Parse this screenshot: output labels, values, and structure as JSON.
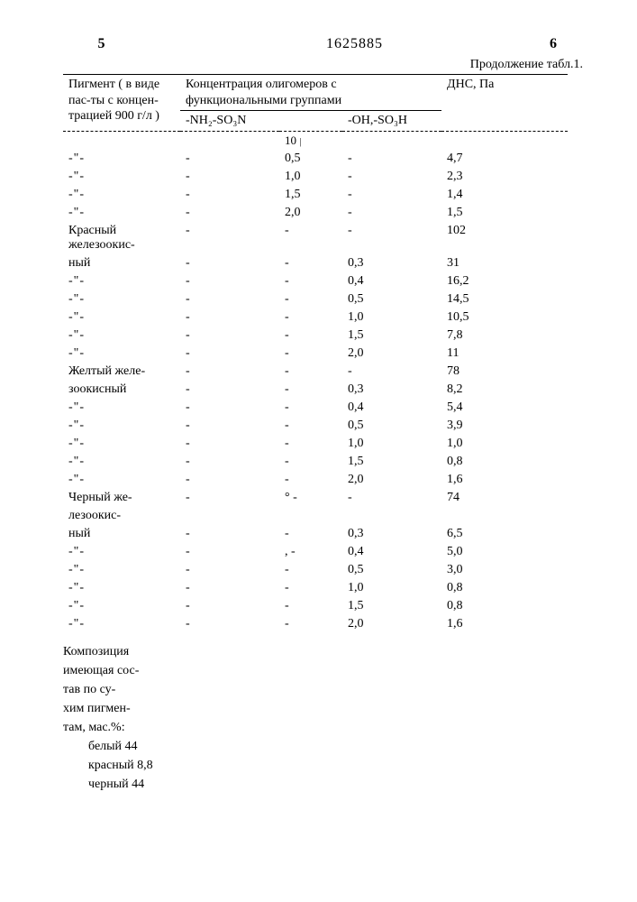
{
  "page_left_num": "5",
  "page_right_num": "6",
  "doc_number": "1625885",
  "continuation": "Продолжение табл.1.",
  "header": {
    "col1": "Пигмент ( в виде пас-ты с концен-трацией 900 г/л )",
    "col_group": "Концентрация олигомеров с функциональными группами",
    "sub_a": "-NH₂-SO₃N",
    "sub_b": "-OH,-SO₃H",
    "col_last": "ДНС, Па"
  },
  "mid_label": "10",
  "rows": [
    {
      "p": "-\"-",
      "a": "-",
      "b": "0,5",
      "c": "-",
      "d": "4,7"
    },
    {
      "p": "-\"-",
      "a": "-",
      "b": "1,0",
      "c": "-",
      "d": "2,3"
    },
    {
      "p": "-\"-",
      "a": "-",
      "b": "1,5",
      "c": "-",
      "d": "1,4"
    },
    {
      "p": "-\"-",
      "a": "-",
      "b": "2,0",
      "c": "-",
      "d": "1,5"
    },
    {
      "p": "Красный железоокис-",
      "a": "-",
      "b": "-",
      "c": "-",
      "d": "102"
    },
    {
      "p": "ный",
      "a": "-",
      "b": "-",
      "c": "0,3",
      "d": "31"
    },
    {
      "p": "-\"-",
      "a": "-",
      "b": "-",
      "c": "0,4",
      "d": "16,2"
    },
    {
      "p": "-\"-",
      "a": "-",
      "b": "-",
      "c": "0,5",
      "d": "14,5"
    },
    {
      "p": "-\"-",
      "a": "-",
      "b": "-",
      "c": "1,0",
      "d": "10,5"
    },
    {
      "p": "-\"-",
      "a": "-",
      "b": "-",
      "c": "1,5",
      "d": "7,8"
    },
    {
      "p": "-\"-",
      "a": "-",
      "b": "-",
      "c": "2,0",
      "d": "11"
    },
    {
      "p": "Желтый желе-",
      "a": "-",
      "b": "-",
      "c": "-",
      "d": "78"
    },
    {
      "p": "зоокисный",
      "a": "-",
      "b": "-",
      "c": "0,3",
      "d": "8,2"
    },
    {
      "p": "-\"-",
      "a": "-",
      "b": "-",
      "c": "0,4",
      "d": "5,4"
    },
    {
      "p": "-\"-",
      "a": "-",
      "b": "-",
      "c": "0,5",
      "d": "3,9"
    },
    {
      "p": "-\"-",
      "a": "-",
      "b": "-",
      "c": "1,0",
      "d": "1,0"
    },
    {
      "p": "-\"-",
      "a": "-",
      "b": "-",
      "c": "1,5",
      "d": "0,8"
    },
    {
      "p": "-\"-",
      "a": "-",
      "b": "-",
      "c": "2,0",
      "d": "1,6"
    },
    {
      "p": "Черный же-",
      "a": "-",
      "b": "°  -",
      "c": "-",
      "d": "74"
    },
    {
      "p": "лезоокис-",
      "a": "",
      "b": "",
      "c": "",
      "d": ""
    },
    {
      "p": "ный",
      "a": "-",
      "b": "-",
      "c": "0,3",
      "d": "6,5"
    },
    {
      "p": "-\"-",
      "a": "-",
      "b": ", -",
      "c": "0,4",
      "d": "5,0"
    },
    {
      "p": "-\"-",
      "a": "-",
      "b": "-",
      "c": "0,5",
      "d": "3,0"
    },
    {
      "p": "-\"-",
      "a": "-",
      "b": "-",
      "c": "1,0",
      "d": "0,8"
    },
    {
      "p": "-\"-",
      "a": "-",
      "b": "-",
      "c": "1,5",
      "d": "0,8"
    },
    {
      "p": "-\"-",
      "a": "-",
      "b": "-",
      "c": "2,0",
      "d": "1,6"
    }
  ],
  "footer": {
    "l1": "Композиция",
    "l2": "имеющая сос-",
    "l3": "тав по су-",
    "l4": "хим пигмен-",
    "l5": "там, мас.%:",
    "i1": "белый 44",
    "i2": "красный 8,8",
    "i3": "черный 44"
  }
}
